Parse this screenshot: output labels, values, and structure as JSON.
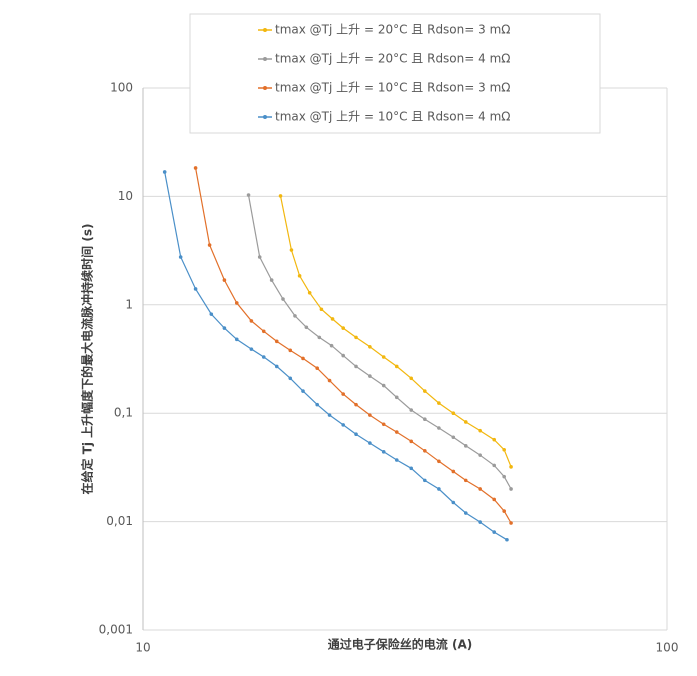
{
  "chart_data": {
    "type": "line",
    "xlabel": "通过电子保险丝的电流 (A)",
    "ylabel": "在给定 Tj 上升幅度下的最大电流脉冲持续时间 (s)",
    "xscale": "log",
    "yscale": "log",
    "xlim": [
      10,
      100
    ],
    "xticks": [
      10,
      100
    ],
    "ylim": [
      0.001,
      100
    ],
    "yticks": [
      {
        "value": 0.001,
        "label": "0,001"
      },
      {
        "value": 0.01,
        "label": "0,01"
      },
      {
        "value": 0.1,
        "label": "0,1"
      },
      1,
      10,
      100
    ],
    "grid": true,
    "legend": "top-right",
    "series": [
      {
        "name": "tmax @Tj 上升 = 20°C 且 Rdson= 3 mΩ",
        "color": "#f2b70f",
        "x": [
          18.3,
          19.2,
          19.9,
          20.8,
          21.9,
          23.0,
          24.1,
          25.5,
          27.1,
          28.8,
          30.5,
          32.5,
          34.5,
          36.7,
          39.1,
          41.3,
          44.0,
          46.8,
          48.9,
          50.4
        ],
        "values": [
          10.1,
          3.2,
          1.85,
          1.29,
          0.91,
          0.74,
          0.61,
          0.5,
          0.41,
          0.33,
          0.27,
          0.21,
          0.16,
          0.124,
          0.1,
          0.083,
          0.069,
          0.057,
          0.046,
          0.032
        ]
      },
      {
        "name": "tmax @Tj 上升 = 20°C 且 Rdson= 4 mΩ",
        "color": "#9b9b9b",
        "x": [
          15.9,
          16.7,
          17.6,
          18.5,
          19.5,
          20.5,
          21.7,
          22.9,
          24.1,
          25.5,
          27.1,
          28.8,
          30.5,
          32.5,
          34.5,
          36.7,
          39.1,
          41.3,
          44.0,
          46.8,
          48.9,
          50.4
        ],
        "values": [
          10.3,
          2.76,
          1.69,
          1.13,
          0.79,
          0.62,
          0.5,
          0.42,
          0.34,
          0.27,
          0.22,
          0.18,
          0.14,
          0.107,
          0.088,
          0.073,
          0.06,
          0.05,
          0.041,
          0.033,
          0.026,
          0.02
        ]
      },
      {
        "name": "tmax @Tj 上升 = 10°C 且 Rdson= 3 mΩ",
        "color": "#e2702a",
        "x": [
          12.6,
          13.4,
          14.3,
          15.1,
          16.1,
          17.0,
          18.0,
          19.1,
          20.2,
          21.5,
          22.7,
          24.1,
          25.5,
          27.1,
          28.8,
          30.5,
          32.5,
          34.5,
          36.7,
          39.1,
          41.3,
          44.0,
          46.8,
          48.9,
          50.4
        ],
        "values": [
          18.3,
          3.56,
          1.69,
          1.04,
          0.71,
          0.57,
          0.46,
          0.38,
          0.32,
          0.26,
          0.2,
          0.15,
          0.12,
          0.096,
          0.079,
          0.067,
          0.055,
          0.045,
          0.036,
          0.029,
          0.024,
          0.02,
          0.016,
          0.0125,
          0.0097
        ]
      },
      {
        "name": "tmax @Tj 上升 = 10°C 且 Rdson= 4 mΩ",
        "color": "#4a8fc8",
        "x": [
          11.0,
          11.8,
          12.6,
          13.5,
          14.3,
          15.1,
          16.1,
          17.0,
          18.0,
          19.1,
          20.2,
          21.5,
          22.7,
          24.1,
          25.5,
          27.1,
          28.8,
          30.5,
          32.5,
          34.5,
          36.7,
          39.1,
          41.3,
          44.0,
          46.8,
          49.5
        ],
        "values": [
          16.8,
          2.76,
          1.4,
          0.82,
          0.61,
          0.48,
          0.39,
          0.33,
          0.27,
          0.21,
          0.16,
          0.12,
          0.096,
          0.078,
          0.064,
          0.053,
          0.044,
          0.037,
          0.031,
          0.024,
          0.02,
          0.015,
          0.012,
          0.0099,
          0.008,
          0.0068
        ]
      }
    ]
  }
}
